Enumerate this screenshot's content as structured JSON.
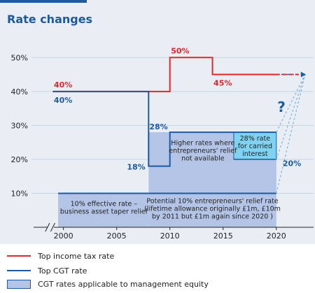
{
  "title": "Rate changes",
  "colors": {
    "income": "#e0282a",
    "cgt": "#1d5aa0",
    "mgmt_fill": "#b4c4e6",
    "carried_fill": "#7fd3f0",
    "background": "#e9eef5"
  },
  "chart_data": {
    "type": "line",
    "title": "Rate changes",
    "xlim": [
      1997,
      2023.5
    ],
    "ylim": [
      0,
      55
    ],
    "x_ticks": [
      "2000",
      "2005",
      "2010",
      "2015",
      "2020"
    ],
    "y_ticks": [
      "10%",
      "20%",
      "30%",
      "40%",
      "50%"
    ],
    "grid": true,
    "series": [
      {
        "name": "Top income tax rate",
        "points": [
          [
            1999,
            40
          ],
          [
            2010,
            40
          ],
          [
            2010,
            50
          ],
          [
            2014,
            50
          ],
          [
            2014,
            45
          ],
          [
            2020,
            45
          ]
        ],
        "projection": [
          [
            2020,
            45
          ],
          [
            2022.7,
            45
          ]
        ]
      },
      {
        "name": "Top CGT rate",
        "points": [
          [
            1999,
            40
          ],
          [
            2008,
            40
          ],
          [
            2008,
            18
          ],
          [
            2010,
            18
          ],
          [
            2010,
            28
          ],
          [
            2020,
            28
          ]
        ]
      }
    ],
    "areas": [
      {
        "name": "CGT rates applicable to management equity",
        "note": "10% effective rate – business asset taper relief",
        "x0": 1999.5,
        "x1": 2008,
        "y0": 0,
        "y1": 10
      },
      {
        "name": "CGT rates applicable to management equity",
        "note": "Potential 10% entrepreneurs' relief rate (lifetime allowance originally £1m, £10m by 2011 but £1m again since 2020 )",
        "x0": 2008,
        "x1": 2020,
        "y0": 0,
        "y1": 10
      },
      {
        "name": "CGT rates applicable to management equity",
        "note": "Higher rates where entrepreneurs' relief not available",
        "x0": 2008,
        "x1": 2020,
        "y0": 10,
        "y1": 28
      },
      {
        "name": "28% rate for carried interest",
        "note": "28% rate for carried interest",
        "x0": 2016,
        "x1": 2020,
        "y0": 20,
        "y1": 28
      }
    ],
    "projection_target": [
      2022.7,
      45
    ],
    "projection_from": [
      [
        2020,
        10
      ],
      [
        2020,
        20
      ],
      [
        2020,
        28
      ]
    ],
    "annotations": {
      "income_40": "40%",
      "income_50": "50%",
      "income_45": "45%",
      "cgt_40": "40%",
      "cgt_18": "18%",
      "cgt_28": "28%",
      "cgt_20": "20%",
      "question": "?"
    }
  },
  "notes": {
    "taper": [
      "10% effective rate –",
      "business asset taper relief"
    ],
    "potential": [
      "Potential 10% entrepreneurs' relief rate",
      "(lifetime allowance originally £1m, £10m",
      "by 2011 but £1m again since 2020 )"
    ],
    "higher": [
      "Higher rates where",
      "entrepreneurs' relief",
      "not available"
    ],
    "carried": [
      "28% rate",
      "for carried",
      "interest"
    ]
  },
  "legend": {
    "income": "Top income tax rate",
    "cgt": "Top CGT rate",
    "mgmt": "CGT rates applicable to management equity"
  }
}
